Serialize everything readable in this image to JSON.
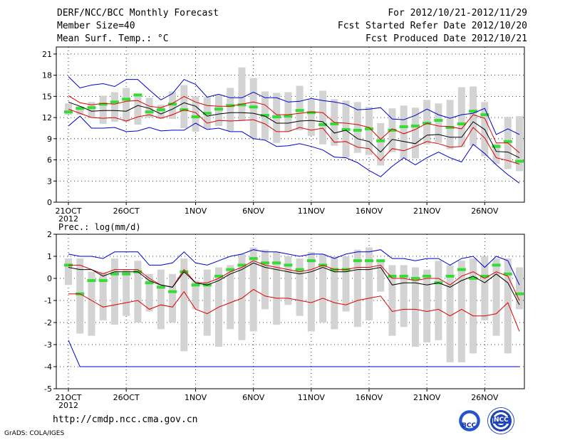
{
  "header": {
    "line1_left": "DERF/NCC/BCC Monthly Forecast",
    "line2_left": "Member Size=40",
    "line3_left": "Mean Surf. Temp.: °C",
    "line1_right": "For 2012/10/21-2012/11/29",
    "line2_right": "Fcst Started Refer Date 2012/10/20",
    "line3_right": "Fcst Produced Date 2012/10/21"
  },
  "footer": {
    "url": "http://cmdp.ncc.cma.gov.cn",
    "credit": "GrADS: COLA/IGES",
    "logo_left": "BCC",
    "logo_right": "NCC"
  },
  "colors": {
    "box": "#d3d3d3",
    "median": "#33dd33",
    "envelope": "#0000cc",
    "band": "#dd0000",
    "mean": "#000000"
  },
  "chart_data": [
    {
      "type": "box",
      "title": "Mean Surf. Temp.: °C",
      "ylim": [
        0,
        22
      ],
      "yticks": [
        0,
        3,
        6,
        9,
        12,
        15,
        18,
        21
      ],
      "x_tick_labels": [
        "21OCT",
        "26OCT",
        "1NOV",
        "6NOV",
        "11NOV",
        "16NOV",
        "21NOV",
        "26NOV"
      ],
      "x_tick_days": [
        1,
        6,
        12,
        17,
        22,
        27,
        32,
        37
      ],
      "x_sub_label": "2012",
      "days": [
        1,
        2,
        3,
        4,
        5,
        6,
        7,
        8,
        9,
        10,
        11,
        12,
        13,
        14,
        15,
        16,
        17,
        18,
        19,
        20,
        21,
        22,
        23,
        24,
        25,
        26,
        27,
        28,
        29,
        30,
        31,
        32,
        33,
        34,
        35,
        36,
        37,
        38,
        39,
        40
      ],
      "series": [
        {
          "name": "ensemble max",
          "values": [
            17.8,
            16.2,
            16.6,
            16.8,
            16.4,
            17.4,
            17.4,
            15.9,
            14.5,
            15.4,
            17.4,
            16.7,
            14.9,
            15.3,
            14.8,
            14.8,
            15.6,
            14.8,
            14.8,
            14.2,
            14.3,
            14.7,
            14.4,
            14.2,
            13.9,
            13.1,
            13.2,
            13.4,
            11.8,
            11.7,
            12.3,
            13.2,
            12.4,
            11.9,
            12.4,
            12.6,
            13.3,
            9.6,
            10.4,
            9.6
          ]
        },
        {
          "name": "upper band",
          "values": [
            15.1,
            14.1,
            13.8,
            14.0,
            13.9,
            14.3,
            14.4,
            13.6,
            13.4,
            14.0,
            15.0,
            14.2,
            13.7,
            13.6,
            13.6,
            13.9,
            14.2,
            13.8,
            12.4,
            12.4,
            12.6,
            12.8,
            12.7,
            11.3,
            11.2,
            11.0,
            10.6,
            8.9,
            10.4,
            9.7,
            10.3,
            11.2,
            10.8,
            10.7,
            10.4,
            12.4,
            11.9,
            8.4,
            8.4,
            7.0
          ]
        },
        {
          "name": "ensemble mean",
          "values": [
            14.2,
            13.6,
            12.9,
            13.0,
            13.0,
            12.9,
            13.7,
            13.3,
            12.5,
            13.2,
            14.1,
            13.6,
            12.2,
            12.5,
            12.7,
            12.7,
            12.6,
            12.2,
            11.2,
            11.2,
            11.5,
            11.6,
            11.4,
            9.8,
            10.2,
            9.0,
            8.6,
            7.1,
            8.9,
            8.6,
            8.3,
            9.5,
            9.6,
            9.2,
            9.2,
            11.4,
            10.3,
            7.2,
            7.1,
            6.3
          ]
        },
        {
          "name": "lower band",
          "values": [
            13.2,
            12.6,
            12.0,
            11.9,
            12.0,
            11.5,
            12.1,
            12.4,
            11.9,
            12.4,
            13.1,
            12.7,
            11.2,
            11.6,
            11.5,
            11.6,
            11.7,
            11.1,
            10.0,
            10.0,
            10.6,
            10.2,
            10.5,
            8.5,
            8.6,
            7.8,
            7.6,
            5.9,
            7.6,
            7.3,
            7.9,
            8.6,
            8.3,
            7.8,
            7.9,
            10.6,
            9.1,
            6.3,
            5.9,
            5.4
          ]
        },
        {
          "name": "ensemble min",
          "values": [
            10.8,
            12.2,
            10.5,
            10.5,
            10.6,
            10.0,
            10.1,
            10.6,
            10.1,
            10.2,
            10.2,
            11.2,
            10.3,
            10.5,
            10.0,
            10.0,
            9.0,
            8.8,
            7.9,
            8.0,
            8.3,
            7.9,
            7.4,
            6.4,
            6.3,
            5.6,
            4.5,
            3.6,
            5.1,
            6.3,
            5.3,
            6.3,
            7.1,
            6.3,
            5.7,
            8.2,
            6.9,
            5.3,
            3.9,
            2.7
          ]
        }
      ],
      "boxes": {
        "high": [
          14.0,
          13.6,
          14.2,
          15.1,
          15.6,
          16.2,
          15.4,
          14.8,
          13.8,
          15.7,
          16.6,
          15.0,
          14.9,
          15.2,
          16.2,
          19.1,
          17.6,
          15.7,
          15.5,
          15.6,
          16.5,
          14.6,
          15.8,
          14.6,
          14.4,
          14.2,
          13.5,
          11.2,
          13.3,
          13.7,
          13.4,
          14.5,
          14.0,
          14.5,
          16.3,
          16.4,
          14.2,
          8.3,
          12.1,
          12.2
        ],
        "low": [
          12.4,
          12.4,
          12.0,
          11.1,
          11.4,
          11.4,
          11.0,
          12.0,
          11.8,
          11.8,
          10.5,
          10.0,
          10.4,
          10.8,
          10.1,
          11.5,
          9.0,
          8.8,
          8.4,
          10.0,
          10.2,
          9.4,
          8.2,
          8.0,
          6.3,
          7.0,
          6.7,
          5.2,
          7.1,
          6.2,
          6.2,
          8.2,
          8.4,
          7.5,
          7.8,
          8.0,
          6.5,
          5.4,
          4.7,
          4.4
        ],
        "median": [
          12.8,
          13.3,
          13.4,
          13.9,
          14.2,
          14.6,
          15.2,
          12.8,
          13.1,
          13.9,
          13.1,
          12.1,
          12.6,
          13.2,
          13.7,
          13.8,
          13.5,
          12.3,
          12.1,
          12.2,
          13.0,
          12.7,
          11.0,
          11.1,
          10.3,
          10.2,
          10.4,
          8.7,
          10.2,
          10.7,
          10.8,
          11.2,
          11.6,
          10.6,
          11.1,
          12.9,
          12.4,
          7.9,
          8.6,
          5.8
        ]
      }
    },
    {
      "type": "box",
      "title": "Prec.: log(mm/d)",
      "ylim": [
        -5,
        2
      ],
      "yticks": [
        -5,
        -4,
        -3,
        -2,
        -1,
        0,
        1,
        2
      ],
      "x_tick_labels": [
        "21OCT",
        "26OCT",
        "1NOV",
        "6NOV",
        "11NOV",
        "16NOV",
        "21NOV",
        "26NOV"
      ],
      "x_tick_days": [
        1,
        6,
        12,
        17,
        22,
        27,
        32,
        37
      ],
      "x_sub_label": "2012",
      "days": [
        1,
        2,
        3,
        4,
        5,
        6,
        7,
        8,
        9,
        10,
        11,
        12,
        13,
        14,
        15,
        16,
        17,
        18,
        19,
        20,
        21,
        22,
        23,
        24,
        25,
        26,
        27,
        28,
        29,
        30,
        31,
        32,
        33,
        34,
        35,
        36,
        37,
        38,
        39,
        40
      ],
      "series": [
        {
          "name": "ensemble max",
          "values": [
            1.1,
            1.0,
            1.0,
            0.9,
            1.2,
            1.2,
            1.2,
            0.6,
            0.6,
            0.7,
            1.2,
            0.7,
            0.6,
            0.8,
            1.0,
            1.1,
            1.3,
            1.2,
            1.2,
            1.1,
            1.0,
            1.1,
            1.1,
            0.9,
            1.1,
            1.2,
            1.2,
            1.3,
            0.9,
            0.9,
            0.8,
            0.9,
            0.9,
            0.6,
            0.9,
            1.0,
            0.5,
            1.0,
            0.8,
            -0.3
          ]
        },
        {
          "name": "upper band",
          "values": [
            0.6,
            0.6,
            0.4,
            0.2,
            0.4,
            0.4,
            0.4,
            0.0,
            -0.3,
            -0.4,
            0.4,
            -0.2,
            -0.2,
            0.0,
            0.3,
            0.5,
            0.8,
            0.6,
            0.5,
            0.4,
            0.3,
            0.4,
            0.6,
            0.4,
            0.4,
            0.5,
            0.5,
            0.6,
            0.0,
            0.0,
            -0.1,
            0.0,
            0.0,
            -0.3,
            0.1,
            0.3,
            0.0,
            0.3,
            0.1,
            -1.0
          ]
        },
        {
          "name": "ensemble mean",
          "values": [
            0.5,
            0.4,
            0.4,
            0.1,
            0.3,
            0.3,
            0.3,
            -0.1,
            -0.3,
            -0.4,
            0.3,
            -0.2,
            -0.3,
            -0.1,
            0.2,
            0.4,
            0.7,
            0.5,
            0.4,
            0.3,
            0.2,
            0.3,
            0.5,
            0.3,
            0.3,
            0.4,
            0.4,
            0.5,
            -0.3,
            -0.2,
            -0.2,
            -0.3,
            -0.2,
            -0.4,
            -0.1,
            0.1,
            -0.2,
            0.2,
            -0.2,
            -1.2
          ]
        },
        {
          "name": "lower band",
          "values": [
            -0.7,
            -0.7,
            -1.0,
            -1.3,
            -1.2,
            -1.1,
            -1.0,
            -1.4,
            -1.2,
            -1.3,
            -0.6,
            -1.4,
            -1.6,
            -1.3,
            -1.1,
            -0.9,
            -0.5,
            -0.8,
            -0.9,
            -0.9,
            -1.0,
            -1.1,
            -0.9,
            -1.1,
            -1.2,
            -1.0,
            -0.9,
            -0.8,
            -1.5,
            -1.4,
            -1.4,
            -1.5,
            -1.4,
            -1.7,
            -1.4,
            -1.7,
            -1.7,
            -1.6,
            -1.1,
            -2.4
          ]
        },
        {
          "name": "ensemble min",
          "values": [
            -2.8,
            -4.0,
            -4.0,
            -4.0,
            -4.0,
            -4.0,
            -4.0,
            -4.0,
            -4.0,
            -4.0,
            -4.0,
            -4.0,
            -4.0,
            -4.0,
            -4.0,
            -4.0,
            -4.0,
            -4.0,
            -4.0,
            -4.0,
            -4.0,
            -4.0,
            -4.0,
            -4.0,
            -4.0,
            -4.0,
            -4.0,
            -4.0,
            -4.0,
            -4.0,
            -4.0,
            -4.0,
            -4.0,
            -4.0,
            -4.0,
            -4.0,
            -4.0,
            -4.0,
            -4.0,
            -4.0
          ]
        }
      ],
      "boxes": {
        "high": [
          0.9,
          0.9,
          0.3,
          0.3,
          0.9,
          0.4,
          0.8,
          0.2,
          0.4,
          0.2,
          0.9,
          -0.1,
          0.4,
          0.5,
          0.6,
          1.1,
          1.4,
          1.3,
          1.2,
          1.0,
          0.9,
          1.2,
          1.1,
          1.0,
          1.0,
          1.3,
          1.4,
          0.8,
          0.6,
          0.6,
          0.5,
          0.4,
          0.8,
          0.6,
          0.8,
          0.9,
          1.0,
          0.9,
          0.9,
          0.5
        ],
        "low": [
          -0.3,
          -2.5,
          -2.6,
          -1.9,
          -2.1,
          -1.7,
          -2.0,
          -1.5,
          -2.3,
          -2.0,
          -3.3,
          -1.4,
          -2.6,
          -3.1,
          -2.3,
          -2.8,
          -2.4,
          -1.4,
          -2.1,
          -1.2,
          -1.7,
          -2.4,
          -2.0,
          -2.3,
          -1.5,
          -2.2,
          -1.9,
          -0.6,
          -2.6,
          -2.2,
          -3.1,
          -2.9,
          -2.8,
          -3.8,
          -3.8,
          -3.4,
          -1.9,
          -2.6,
          -3.4,
          -1.4
        ],
        "median": [
          0.6,
          -0.7,
          -0.1,
          -0.1,
          0.2,
          0.2,
          0.3,
          -0.2,
          -0.4,
          -0.6,
          0.3,
          -0.3,
          -0.3,
          0.1,
          0.4,
          0.6,
          0.9,
          0.7,
          0.7,
          0.6,
          0.4,
          0.8,
          0.6,
          0.4,
          0.4,
          0.8,
          0.8,
          0.8,
          0.1,
          0.1,
          0.0,
          0.1,
          -0.2,
          0.1,
          0.4,
          0.0,
          0.1,
          0.6,
          0.2,
          -0.7
        ]
      }
    }
  ]
}
